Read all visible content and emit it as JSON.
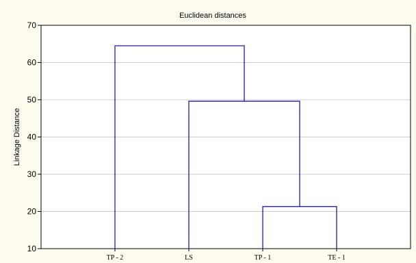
{
  "chart_data": {
    "type": "dendrogram",
    "title": "Euclidean distances",
    "ylabel": "Linkage Distance",
    "xlabel": "",
    "ylim": [
      10,
      70
    ],
    "yticks": [
      10,
      20,
      30,
      40,
      50,
      60,
      70
    ],
    "leaves": [
      "TP - 2",
      "LS",
      "TP - 1",
      "TE - 1"
    ],
    "merges": [
      {
        "left": "TP - 1",
        "right": "TE - 1",
        "height": 21.3
      },
      {
        "left": "LS",
        "right": "[TP - 1, TE - 1]",
        "height": 49.6
      },
      {
        "left": "TP - 2",
        "right": "[LS, TP - 1, TE - 1]",
        "height": 64.5
      }
    ],
    "grid": true,
    "colors": {
      "line": "#1A1AB0",
      "plot_bg": "#FFFFFF",
      "page_bg": "#FEFCEF",
      "grid": "#CCCCCC"
    }
  }
}
